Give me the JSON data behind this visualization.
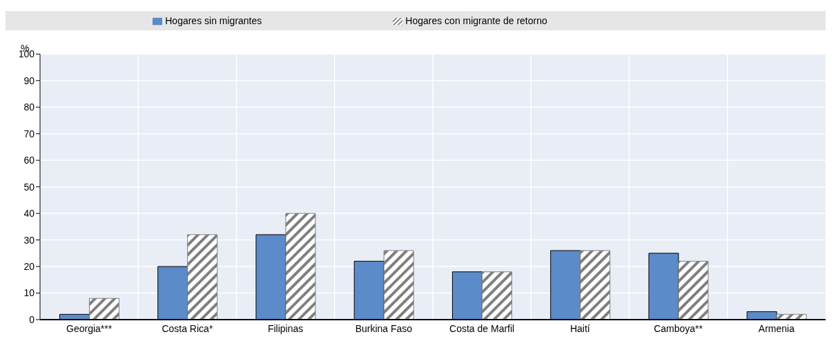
{
  "chart_data": {
    "type": "bar",
    "ylabel": "%",
    "categories": [
      "Georgia***",
      "Costa Rica*",
      "Filipinas",
      "Burkina Faso",
      "Costa de Marfil",
      "Haití",
      "Camboya**",
      "Armenia"
    ],
    "series": [
      {
        "name": "Hogares sin migrantes",
        "color": "#5b8bc8",
        "values": [
          2,
          20,
          32,
          22,
          18,
          26,
          25,
          3
        ]
      },
      {
        "name": "Hogares con migrante de retorno",
        "color": "#7f7f7f",
        "values": [
          8,
          32,
          40,
          26,
          18,
          26,
          22,
          2
        ]
      }
    ],
    "ylim": [
      0,
      100
    ],
    "yticks": [
      0,
      10,
      20,
      30,
      40,
      50,
      60,
      70,
      80,
      90,
      100
    ],
    "grid": true,
    "legend": "top"
  }
}
